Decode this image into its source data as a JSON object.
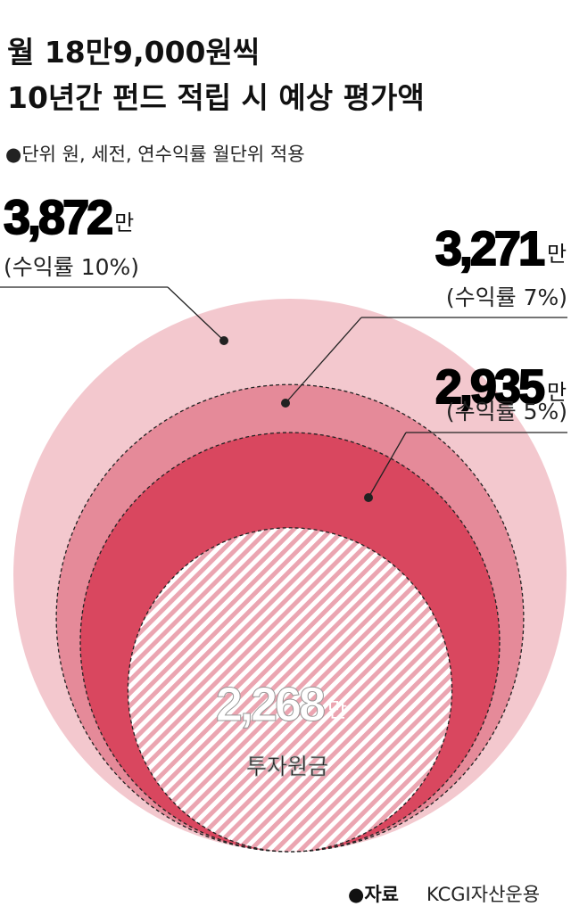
{
  "chart_data": {
    "type": "nested-circle",
    "title": [
      "월 18만9,000원씩",
      "10년간 펀드 적립 시 예상 평가액"
    ],
    "subtitle": "●단위  원, 세전, 연수익률 월단위 적용",
    "categories": [
      "(수익률 10%)",
      "(수익률 7%)",
      "(수익률 5%)",
      "투자원금"
    ],
    "values": [
      3872,
      3271,
      2935,
      2268
    ],
    "value_labels": [
      "3,872",
      "3,271",
      "2,935",
      "2,268"
    ],
    "unit": "만",
    "colors": [
      "#f3c8ce",
      "#e58a99",
      "#d9475f",
      "#f0b3bd"
    ],
    "source_label": "●자료",
    "source": "KCGI자산운용"
  }
}
